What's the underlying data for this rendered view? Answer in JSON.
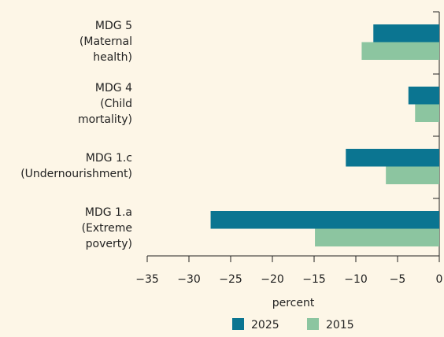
{
  "chart_data": {
    "type": "hbar",
    "categories": [
      "MDG 5\n(Maternal\nhealth)",
      "MDG 4\n(Child\nmortality)",
      "MDG 1.c\n(Undernourishment)",
      "MDG 1.a\n(Extreme\npoverty)"
    ],
    "series": [
      {
        "name": "2025",
        "color": "#0b7591",
        "values": [
          -7.9,
          -3.7,
          -11.2,
          -27.4
        ]
      },
      {
        "name": "2015",
        "color": "#8cc5a0",
        "values": [
          -9.3,
          -2.9,
          -6.4,
          -14.9
        ]
      }
    ],
    "xlabel": "percent",
    "xlim": [
      -35,
      0
    ],
    "xticks": [
      {
        "value": -35,
        "label": "−35"
      },
      {
        "value": -30,
        "label": "−30"
      },
      {
        "value": -25,
        "label": "−25"
      },
      {
        "value": -20,
        "label": "−20"
      },
      {
        "value": -15,
        "label": "−15"
      },
      {
        "value": -10,
        "label": "−10"
      },
      {
        "value": -5,
        "label": "−5"
      },
      0
    ],
    "legend": "bottom"
  }
}
